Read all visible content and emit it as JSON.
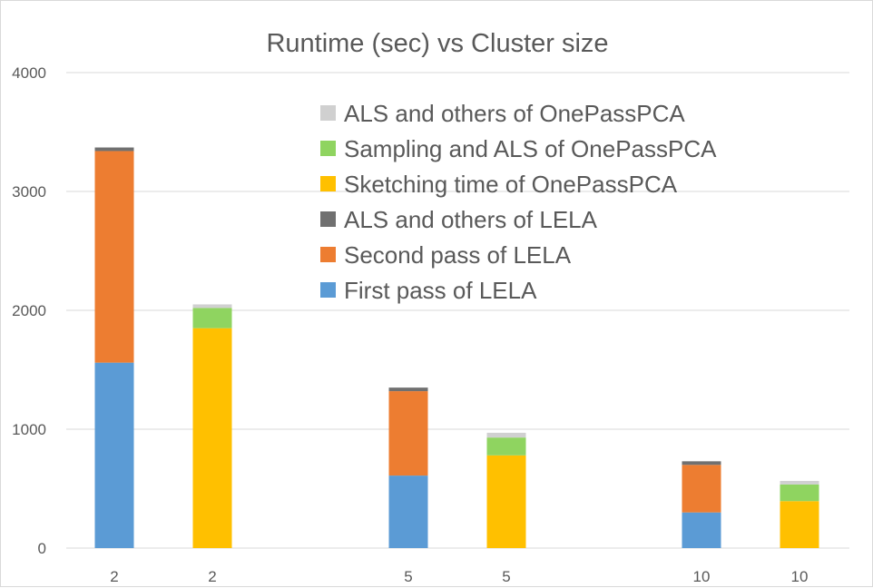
{
  "chart_data": {
    "type": "bar",
    "stacked": true,
    "title": "Runtime (sec) vs Cluster size",
    "xlabel": "",
    "ylabel": "",
    "ylim": [
      0,
      4000
    ],
    "yticks": [
      0,
      1000,
      2000,
      3000,
      4000
    ],
    "grid": true,
    "legend_position": "top-right",
    "categories": [
      "2",
      "2",
      "5",
      "5",
      "10",
      "10"
    ],
    "series": [
      {
        "name": "First pass of LELA",
        "color": "#5b9bd5",
        "values": [
          1560,
          0,
          610,
          0,
          300,
          0
        ]
      },
      {
        "name": "Second pass of LELA",
        "color": "#ed7d31",
        "values": [
          1780,
          0,
          710,
          0,
          400,
          0
        ]
      },
      {
        "name": "ALS and others of LELA",
        "color": "#707070",
        "values": [
          30,
          0,
          30,
          0,
          30,
          0
        ]
      },
      {
        "name": "Sketching time of OnePassPCA",
        "color": "#ffc000",
        "values": [
          0,
          1850,
          0,
          780,
          0,
          395
        ]
      },
      {
        "name": "Sampling and ALS of OnePassPCA",
        "color": "#8fd460",
        "values": [
          0,
          170,
          0,
          150,
          0,
          140
        ]
      },
      {
        "name": "ALS and others of OnePassPCA",
        "color": "#d0d0d0",
        "values": [
          0,
          30,
          0,
          40,
          0,
          30
        ]
      }
    ],
    "legend_order": [
      "ALS and others of OnePassPCA",
      "Sampling and ALS of OnePassPCA",
      "Sketching time of OnePassPCA",
      "ALS and others of LELA",
      "Second pass of LELA",
      "First pass of LELA"
    ],
    "colors": {
      "gridline": "#d9d9d9",
      "text": "#595959"
    }
  }
}
